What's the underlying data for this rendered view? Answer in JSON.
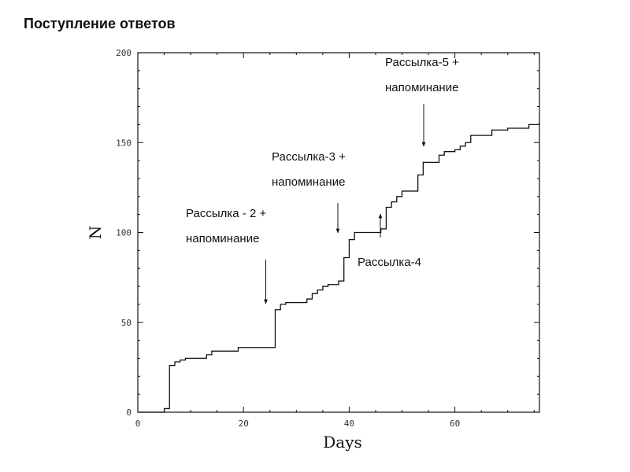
{
  "slide": {
    "title": "Поступление ответов"
  },
  "chart_data": {
    "type": "line",
    "step": true,
    "xlabel": "Days",
    "ylabel": "N",
    "xlim": [
      0,
      76
    ],
    "ylim": [
      0,
      200
    ],
    "x_ticks": [
      0,
      20,
      40,
      60
    ],
    "y_ticks": [
      0,
      50,
      100,
      150,
      200
    ],
    "grid": false,
    "series": [
      {
        "x": [
          0,
          5,
          6,
          7,
          8,
          9,
          13,
          14,
          19,
          26,
          27,
          28,
          32,
          33,
          34,
          35,
          36,
          38,
          39,
          40,
          41,
          46,
          47,
          48,
          49,
          50,
          53,
          54,
          57,
          58,
          60,
          61,
          62,
          63,
          67,
          70,
          74,
          76
        ],
        "y": [
          0,
          2,
          26,
          28,
          29,
          30,
          32,
          34,
          36,
          57,
          60,
          61,
          63,
          66,
          68,
          70,
          71,
          73,
          86,
          96,
          100,
          102,
          114,
          117,
          120,
          123,
          132,
          139,
          143,
          145,
          146,
          148,
          150,
          154,
          157,
          158,
          160,
          161
        ]
      }
    ],
    "annotations": [
      {
        "lines": [
          "Рассылка - 2 +",
          "напоминание"
        ],
        "x": 24.5,
        "y": 60,
        "direction": "down"
      },
      {
        "lines": [
          "Рассылка-3 +",
          "напоминание"
        ],
        "x": 38,
        "y": 100,
        "direction": "down"
      },
      {
        "lines": [
          "Рассылка-4"
        ],
        "x": 46,
        "y": 110,
        "direction": "up"
      },
      {
        "lines": [
          "Рассылка-5 +",
          "напоминание"
        ],
        "x": 54,
        "y": 150,
        "direction": "down"
      }
    ]
  }
}
